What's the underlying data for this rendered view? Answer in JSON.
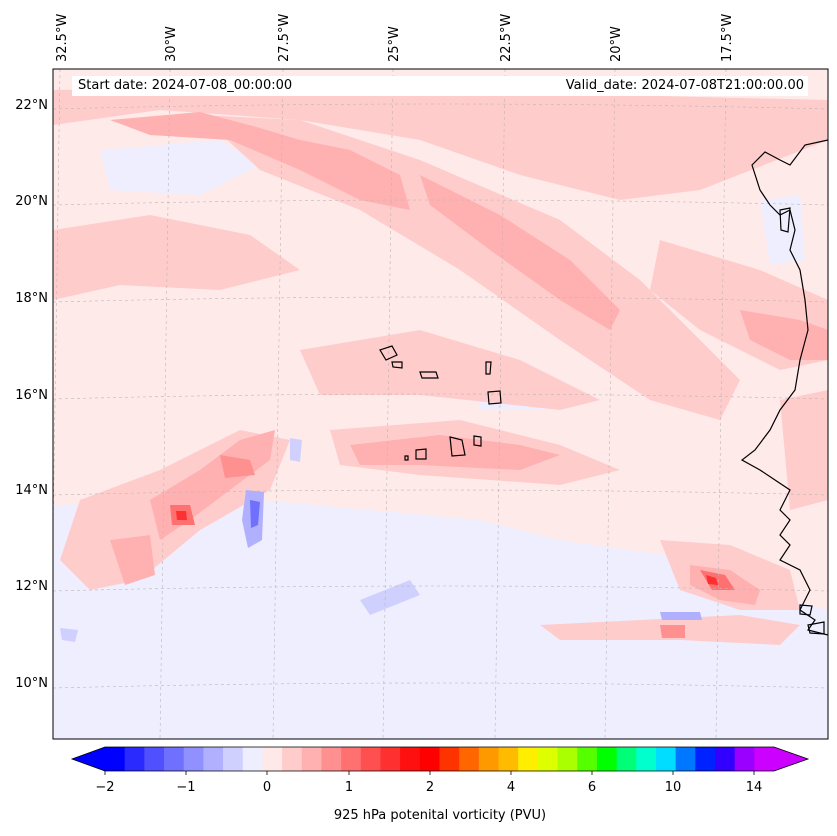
{
  "map": {
    "region": "Eastern Atlantic / Cape Verde / West African coast",
    "longitude_labels": [
      "32.5°W",
      "30°W",
      "27.5°W",
      "25°W",
      "22.5°W",
      "20°W",
      "17.5°W"
    ],
    "latitude_labels": [
      "22°N",
      "20°N",
      "18°N",
      "16°N",
      "14°N",
      "12°N",
      "10°N"
    ],
    "start_date_text": "Start date: 2024-07-08_00:00:00",
    "valid_date_text": "Valid_date: 2024-07-08T21:00:00.00"
  },
  "colorbar": {
    "label": "925 hPa potenital vorticity (PVU)",
    "tick_labels": [
      "−2",
      "−1",
      "0",
      "1",
      "2",
      "4",
      "6",
      "10",
      "14"
    ],
    "colors": [
      "#0000ff",
      "#2a2aff",
      "#5050ff",
      "#7070ff",
      "#9090ff",
      "#b0b0ff",
      "#d0d0ff",
      "#eeeeff",
      "#ffe8e8",
      "#ffcccc",
      "#ffb0b0",
      "#ff9090",
      "#ff7070",
      "#ff5050",
      "#ff3030",
      "#ff1010",
      "#ff0000",
      "#ff3300",
      "#ff6600",
      "#ff9900",
      "#ffbb00",
      "#ffee00",
      "#ddff00",
      "#aaff00",
      "#55ff00",
      "#00ff00",
      "#00ff77",
      "#00ffcc",
      "#00ddff",
      "#0077ff",
      "#0022ff",
      "#3300ff",
      "#9900ff",
      "#cc00ff"
    ],
    "under_color": "#0000ff",
    "over_color": "#cc00ff"
  },
  "colors": {
    "background_field": "#ffeaea",
    "frame": "#000000",
    "coast": "#000000",
    "grid": "#b8b8b8"
  }
}
